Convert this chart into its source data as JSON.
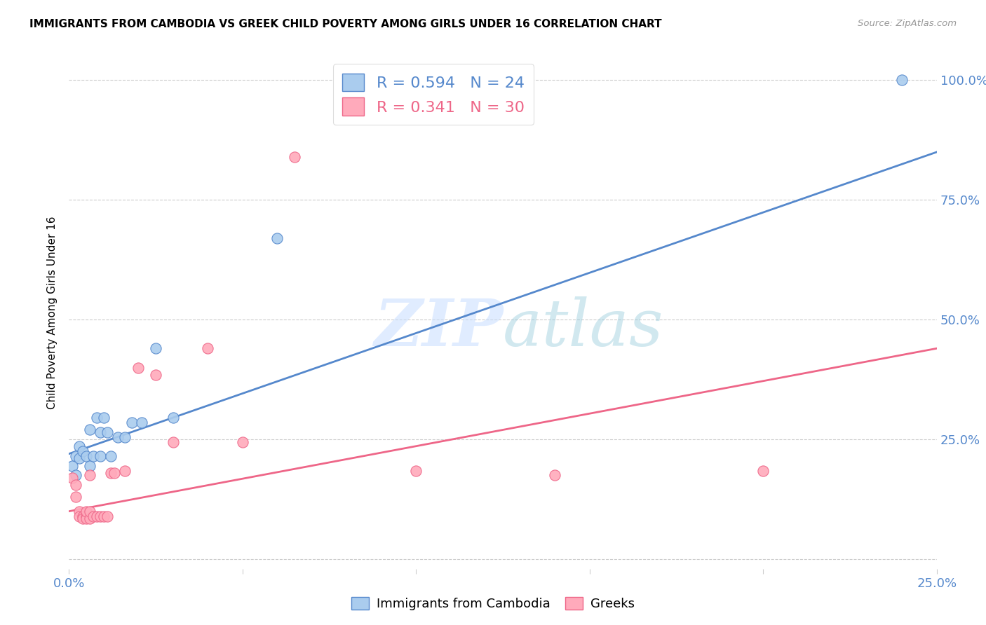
{
  "title": "IMMIGRANTS FROM CAMBODIA VS GREEK CHILD POVERTY AMONG GIRLS UNDER 16 CORRELATION CHART",
  "source": "Source: ZipAtlas.com",
  "ylabel": "Child Poverty Among Girls Under 16",
  "watermark": "ZIPatlas",
  "blue_color": "#5588CC",
  "pink_color": "#EE6688",
  "blue_fill": "#AACCEE",
  "pink_fill": "#FFAABB",
  "blue_R": 0.594,
  "pink_R": 0.341,
  "blue_N": 24,
  "pink_N": 30,
  "blue_scatter_x": [
    0.001,
    0.002,
    0.002,
    0.003,
    0.003,
    0.004,
    0.005,
    0.006,
    0.006,
    0.007,
    0.008,
    0.009,
    0.009,
    0.01,
    0.011,
    0.012,
    0.014,
    0.016,
    0.018,
    0.021,
    0.025,
    0.03,
    0.06,
    0.24
  ],
  "blue_scatter_y": [
    0.195,
    0.175,
    0.215,
    0.21,
    0.235,
    0.225,
    0.215,
    0.27,
    0.195,
    0.215,
    0.295,
    0.265,
    0.215,
    0.295,
    0.265,
    0.215,
    0.255,
    0.255,
    0.285,
    0.285,
    0.44,
    0.295,
    0.67,
    1.0
  ],
  "pink_scatter_x": [
    0.001,
    0.002,
    0.002,
    0.003,
    0.003,
    0.004,
    0.004,
    0.005,
    0.005,
    0.005,
    0.006,
    0.006,
    0.006,
    0.007,
    0.008,
    0.009,
    0.01,
    0.011,
    0.012,
    0.013,
    0.016,
    0.02,
    0.025,
    0.03,
    0.04,
    0.05,
    0.065,
    0.1,
    0.14,
    0.2
  ],
  "pink_scatter_y": [
    0.17,
    0.155,
    0.13,
    0.1,
    0.09,
    0.09,
    0.085,
    0.09,
    0.085,
    0.1,
    0.085,
    0.1,
    0.175,
    0.09,
    0.09,
    0.09,
    0.09,
    0.09,
    0.18,
    0.18,
    0.185,
    0.4,
    0.385,
    0.245,
    0.44,
    0.245,
    0.84,
    0.185,
    0.175,
    0.185
  ],
  "xmin": 0.0,
  "xmax": 0.25,
  "ymin": -0.02,
  "ymax": 1.05,
  "blue_line_x0": 0.0,
  "blue_line_x1": 0.25,
  "blue_line_y0": 0.22,
  "blue_line_y1": 0.85,
  "pink_line_x0": 0.0,
  "pink_line_x1": 0.25,
  "pink_line_y0": 0.1,
  "pink_line_y1": 0.44,
  "yticks": [
    0.0,
    0.25,
    0.5,
    0.75,
    1.0
  ],
  "ytick_labels": [
    "",
    "25.0%",
    "50.0%",
    "75.0%",
    "100.0%"
  ],
  "xticks": [
    0.0,
    0.05,
    0.1,
    0.15,
    0.2,
    0.25
  ],
  "xtick_labels": [
    "0.0%",
    "",
    "",
    "",
    "",
    "25.0%"
  ],
  "tick_color": "#5588CC",
  "grid_color": "#CCCCCC",
  "title_fontsize": 11,
  "axis_fontsize": 13,
  "legend_fontsize": 16
}
